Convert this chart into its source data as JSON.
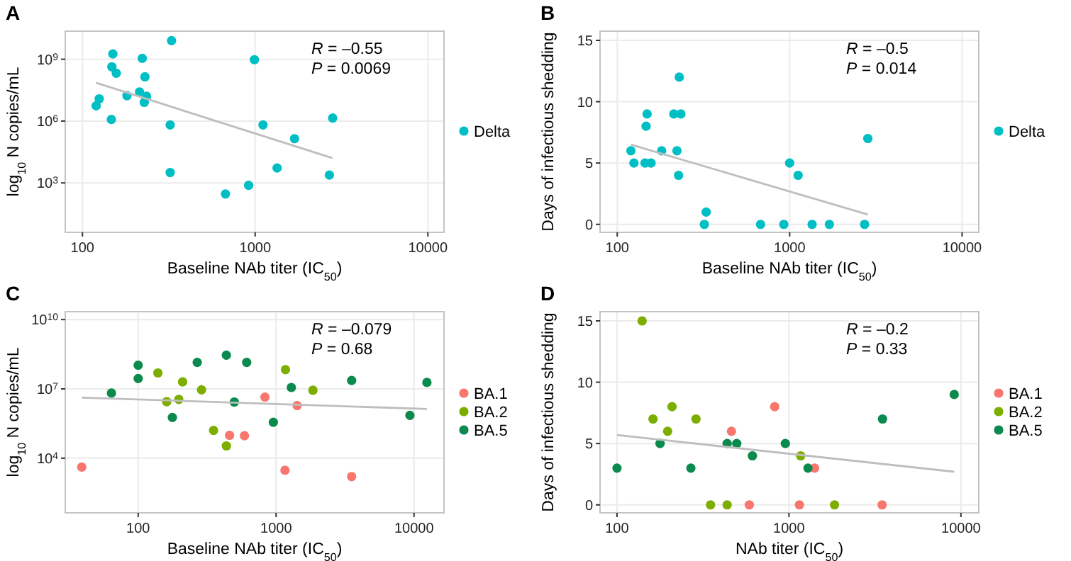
{
  "chart_data": [
    {
      "type": "scatter",
      "title": "A",
      "xlabel": "Baseline NAb titer (IC$_{50}$)",
      "ylabel": "log$_{10}$ N copies/mL",
      "log": "xy",
      "xlim": [
        79.5,
        12400
      ],
      "xticks": [
        100,
        1000,
        10000
      ],
      "ylim": [
        4,
        23000000000.0
      ],
      "yticks": [
        {
          "value": 1000,
          "label": "10$^{3}$"
        },
        {
          "value": 1000000,
          "label": "10$^{6}$"
        },
        {
          "value": 1000000000,
          "label": "10$^{9}$"
        }
      ],
      "grid": true,
      "legend": "right",
      "annotations": [
        "R = –0.55",
        "P = 0.0069"
      ],
      "series": [
        {
          "name": "Delta",
          "color": "#00bfc4",
          "marker": "circle",
          "x": [
            328,
            150,
            222,
            990,
            148,
            157,
            230,
            214,
            181,
            235,
            125,
            228,
            120,
            147,
            2810,
            322,
            1110,
            1690,
            1340,
            322,
            2690,
            916,
            673
          ],
          "values": [
            8000000000.0,
            1800000000.0,
            1100000000.0,
            950000000.0,
            430000000.0,
            210000000.0,
            140000000.0,
            26000000.0,
            17000000.0,
            16000000.0,
            12000000.0,
            8100000.0,
            5500000.0,
            1200000.0,
            1400000.0,
            650000.0,
            650000.0,
            140000.0,
            5300,
            3200,
            2400,
            760,
            290
          ]
        },
        {
          "type": "line",
          "color": "#bebebe",
          "marker": "none",
          "x": [
            120,
            2800
          ],
          "values": [
            72000000.0,
            16000
          ]
        }
      ]
    },
    {
      "type": "scatter",
      "title": "B",
      "xlabel": "Baseline NAb titer (IC$_{50}$)",
      "ylabel": "Days of infectious shedding",
      "log": "x",
      "xlim": [
        79.5,
        12500
      ],
      "xticks": [
        100,
        1000,
        10000
      ],
      "ylim": [
        -0.65,
        15.75
      ],
      "yticks": [
        0,
        5,
        10,
        15
      ],
      "grid": true,
      "legend": "right",
      "annotations": [
        "R = –0.5",
        "P = 0.014"
      ],
      "series": [
        {
          "name": "Delta",
          "color": "#00bfc4",
          "marker": "circle",
          "x": [
            120,
            125,
            145,
            157,
            147,
            149,
            181,
            213,
            222,
            227,
            229,
            234,
            320,
            328,
            678,
            925,
            1000,
            1120,
            1350,
            1700,
            2720,
            2840
          ],
          "values": [
            6,
            5,
            5,
            5,
            8,
            9,
            6,
            9,
            6,
            4,
            12,
            9,
            0,
            1,
            0,
            0,
            5,
            4,
            0,
            0,
            0,
            7
          ]
        },
        {
          "type": "line",
          "color": "#bebebe",
          "marker": "none",
          "x": [
            120,
            2840
          ],
          "values": [
            6.5,
            0.8
          ]
        }
      ]
    },
    {
      "type": "scatter",
      "title": "C",
      "xlabel": "Baseline NAb titer (IC$_{50}$)",
      "ylabel": "log$_{10}$ N copies/mL",
      "log": "xy",
      "xlim": [
        29.6,
        16500
      ],
      "xticks": [
        100,
        1000,
        10000
      ],
      "ylim": [
        43,
        22000000000.0
      ],
      "yticks": [
        {
          "value": 10000,
          "label": "10$^{4}$"
        },
        {
          "value": 10000000,
          "label": "10$^{7}$"
        },
        {
          "value": 10000000000,
          "label": "10$^{10}$"
        }
      ],
      "grid": true,
      "legend": "right",
      "annotations": [
        "R = –0.079",
        "P = 0.68"
      ],
      "series": [
        {
          "name": "BA.1",
          "color": "#f8766d",
          "marker": "circle",
          "x": [
            39,
            830,
            1420,
            460,
            590,
            1160,
            3530
          ],
          "values": [
            4100,
            4400000.0,
            1900000.0,
            98000,
            94000,
            3000,
            1600
          ]
        },
        {
          "name": "BA.2",
          "color": "#7cae00",
          "marker": "circle",
          "x": [
            139,
            210,
            161,
            197,
            288,
            352,
            436,
            1170,
            1850
          ],
          "values": [
            49000000.0,
            20000000.0,
            2800000.0,
            3500000.0,
            9100000.0,
            160000.0,
            34000,
            68000000.0,
            8700000.0
          ]
        },
        {
          "name": "BA.5",
          "color": "#0b8a4e",
          "marker": "circle",
          "x": [
            64,
            100,
            100,
            177,
            268,
            436,
            612,
            498,
            955,
            1290,
            3530,
            9340,
            12400
          ],
          "values": [
            6600000.0,
            105000000.0,
            28000000.0,
            580000.0,
            140000000.0,
            290000000.0,
            140000000.0,
            2700000.0,
            360000.0,
            11500000.0,
            23000000.0,
            710000.0,
            19000000.0
          ]
        },
        {
          "type": "line",
          "color": "#bebebe",
          "marker": "none",
          "x": [
            39,
            12400
          ],
          "values": [
            4200000.0,
            1350000.0
          ]
        }
      ]
    },
    {
      "type": "scatter",
      "title": "D",
      "xlabel": "NAb titer (IC$_{50}$)",
      "ylabel": "Days of infectious shedding",
      "log": "x",
      "xlim": [
        79.7,
        12700
      ],
      "xticks": [
        100,
        1000,
        10000
      ],
      "ylim": [
        -0.65,
        15.75
      ],
      "yticks": [
        0,
        5,
        10,
        15
      ],
      "grid": true,
      "legend": "right",
      "annotations": [
        "R = –0.2",
        "P = 0.33"
      ],
      "series": [
        {
          "name": "BA.1",
          "color": "#f8766d",
          "marker": "circle",
          "x": [
            463,
            826,
            1410,
            588,
            1150,
            3480
          ],
          "values": [
            6,
            8,
            3,
            0,
            0,
            0
          ]
        },
        {
          "name": "BA.2",
          "color": "#7cae00",
          "marker": "circle",
          "x": [
            140,
            162,
            197,
            209,
            288,
            350,
            437,
            1170,
            1840
          ],
          "values": [
            15,
            7,
            6,
            8,
            7,
            0,
            0,
            4,
            0
          ]
        },
        {
          "name": "BA.5",
          "color": "#0b8a4e",
          "marker": "circle",
          "x": [
            100,
            178,
            269,
            437,
            497,
            613,
            953,
            1290,
            3500,
            9140
          ],
          "values": [
            3,
            5,
            3,
            5,
            5,
            4,
            5,
            3,
            7,
            9
          ]
        },
        {
          "type": "line",
          "color": "#bebebe",
          "marker": "none",
          "x": [
            100,
            9140
          ],
          "values": [
            5.7,
            2.7
          ]
        }
      ]
    }
  ]
}
